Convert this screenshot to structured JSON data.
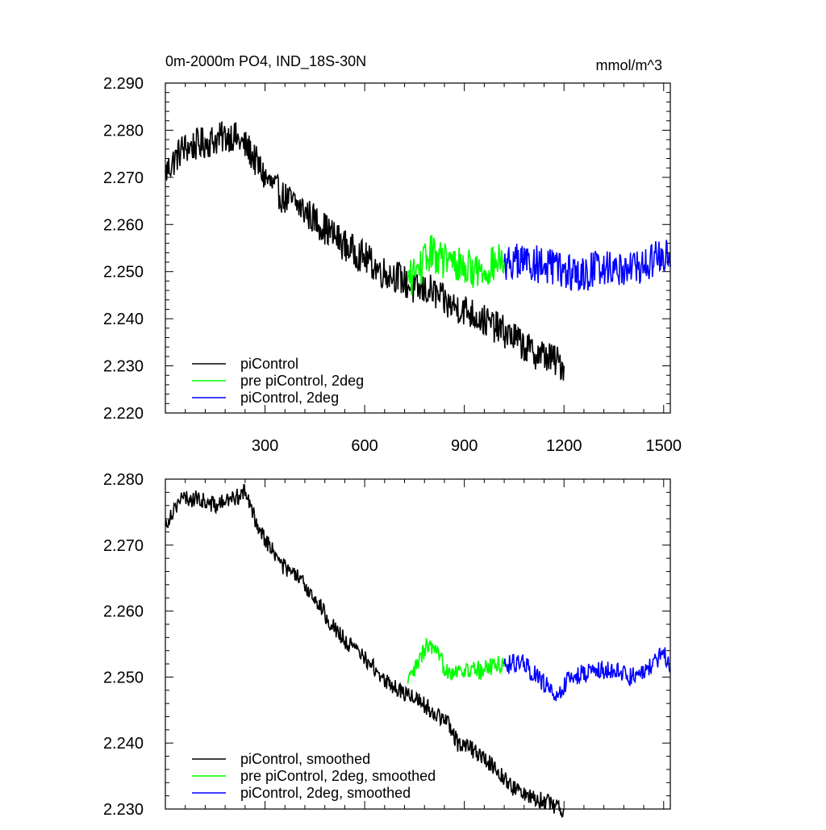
{
  "chart_data": [
    {
      "type": "line",
      "title": "0m-2000m PO4, IND_18S-30N",
      "units": "mmol/m^3",
      "xlabel": "",
      "ylabel": "",
      "xlim": [
        0,
        1520
      ],
      "ylim": [
        2.22,
        2.29
      ],
      "x_ticks": [
        300,
        600,
        900,
        1200,
        1500
      ],
      "y_ticks": [
        2.22,
        2.23,
        2.24,
        2.25,
        2.26,
        2.27,
        2.28,
        2.29
      ],
      "legend_position": "bottom-left",
      "series": [
        {
          "name": "piControl",
          "color": "#000000",
          "points": [
            [
              0,
              2.271
            ],
            [
              50,
              2.276
            ],
            [
              100,
              2.277
            ],
            [
              150,
              2.278
            ],
            [
              200,
              2.279
            ],
            [
              250,
              2.276
            ],
            [
              300,
              2.27
            ],
            [
              350,
              2.266
            ],
            [
              400,
              2.264
            ],
            [
              450,
              2.261
            ],
            [
              500,
              2.258
            ],
            [
              550,
              2.255
            ],
            [
              600,
              2.253
            ],
            [
              650,
              2.25
            ],
            [
              700,
              2.249
            ],
            [
              750,
              2.246
            ],
            [
              800,
              2.246
            ],
            [
              850,
              2.243
            ],
            [
              900,
              2.242
            ],
            [
              950,
              2.24
            ],
            [
              1000,
              2.238
            ],
            [
              1050,
              2.236
            ],
            [
              1100,
              2.233
            ],
            [
              1150,
              2.232
            ],
            [
              1200,
              2.23
            ]
          ],
          "noise": 0.0035
        },
        {
          "name": "pre piControl, 2deg",
          "color": "#00ff00",
          "points": [
            [
              730,
              2.248
            ],
            [
              780,
              2.252
            ],
            [
              800,
              2.254
            ],
            [
              850,
              2.252
            ],
            [
              900,
              2.251
            ],
            [
              950,
              2.25
            ],
            [
              1000,
              2.252
            ],
            [
              1020,
              2.252
            ]
          ],
          "noise": 0.004
        },
        {
          "name": "piControl, 2deg",
          "color": "#0000ff",
          "points": [
            [
              1020,
              2.252
            ],
            [
              1100,
              2.252
            ],
            [
              1200,
              2.25
            ],
            [
              1250,
              2.249
            ],
            [
              1300,
              2.251
            ],
            [
              1350,
              2.251
            ],
            [
              1400,
              2.251
            ],
            [
              1450,
              2.251
            ],
            [
              1500,
              2.254
            ],
            [
              1520,
              2.251
            ]
          ],
          "noise": 0.004
        }
      ]
    },
    {
      "type": "line",
      "title": "",
      "xlabel": "",
      "ylabel": "",
      "xlim": [
        0,
        1520
      ],
      "ylim": [
        2.23,
        2.28
      ],
      "x_ticks": [
        300,
        600,
        900,
        1200,
        1500
      ],
      "y_ticks": [
        2.23,
        2.24,
        2.25,
        2.26,
        2.27,
        2.28
      ],
      "legend_position": "bottom-left",
      "series": [
        {
          "name": "piControl, smoothed",
          "color": "#000000",
          "points": [
            [
              0,
              2.273
            ],
            [
              30,
              2.276
            ],
            [
              50,
              2.277
            ],
            [
              100,
              2.277
            ],
            [
              150,
              2.276
            ],
            [
              200,
              2.277
            ],
            [
              240,
              2.278
            ],
            [
              270,
              2.274
            ],
            [
              300,
              2.271
            ],
            [
              350,
              2.267
            ],
            [
              400,
              2.265
            ],
            [
              450,
              2.262
            ],
            [
              500,
              2.258
            ],
            [
              550,
              2.255
            ],
            [
              600,
              2.253
            ],
            [
              650,
              2.25
            ],
            [
              700,
              2.248
            ],
            [
              750,
              2.247
            ],
            [
              800,
              2.245
            ],
            [
              850,
              2.243
            ],
            [
              880,
              2.24
            ],
            [
              900,
              2.24
            ],
            [
              950,
              2.238
            ],
            [
              1000,
              2.236
            ],
            [
              1050,
              2.233
            ],
            [
              1100,
              2.232
            ],
            [
              1150,
              2.231
            ],
            [
              1200,
              2.23
            ]
          ],
          "noise": 0.0013
        },
        {
          "name": "pre piControl, 2deg, smoothed",
          "color": "#00ff00",
          "points": [
            [
              730,
              2.249
            ],
            [
              760,
              2.252
            ],
            [
              790,
              2.255
            ],
            [
              820,
              2.253
            ],
            [
              850,
              2.251
            ],
            [
              900,
              2.251
            ],
            [
              950,
              2.251
            ],
            [
              1000,
              2.252
            ],
            [
              1020,
              2.252
            ]
          ],
          "noise": 0.0015
        },
        {
          "name": "piControl, 2deg, smoothed",
          "color": "#0000ff",
          "points": [
            [
              1020,
              2.252
            ],
            [
              1080,
              2.252
            ],
            [
              1120,
              2.25
            ],
            [
              1160,
              2.248
            ],
            [
              1180,
              2.247
            ],
            [
              1220,
              2.25
            ],
            [
              1300,
              2.251
            ],
            [
              1350,
              2.251
            ],
            [
              1400,
              2.25
            ],
            [
              1450,
              2.251
            ],
            [
              1500,
              2.254
            ],
            [
              1520,
              2.251
            ]
          ],
          "noise": 0.0015
        }
      ]
    }
  ]
}
